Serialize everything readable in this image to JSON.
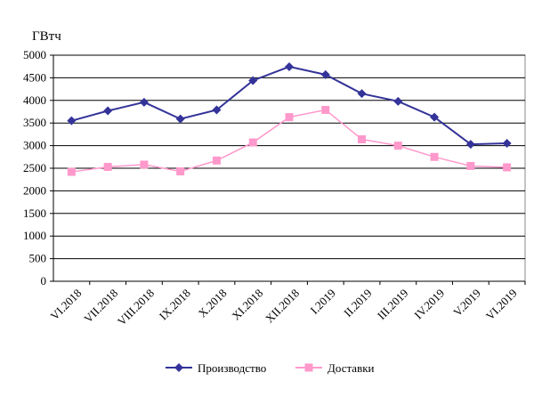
{
  "chart_data": {
    "type": "line",
    "title": "",
    "ylabel": "ГВтч",
    "xlabel": "",
    "ylim": [
      0,
      5000
    ],
    "yticks": [
      0,
      500,
      1000,
      1500,
      2000,
      2500,
      3000,
      3500,
      4000,
      4500,
      5000
    ],
    "grid": true,
    "legend_position": "bottom",
    "categories": [
      "VI.2018",
      "VII.2018",
      "VIII.2018",
      "IX.2018",
      "X.2018",
      "XI.2018",
      "XII.2018",
      "I.2019",
      "II.2019",
      "III.2019",
      "IV.2019",
      "V.2019",
      "VI.2019"
    ],
    "series": [
      {
        "name": "Производство",
        "color": "#333399",
        "marker": "diamond",
        "values": [
          3550,
          3770,
          3960,
          3590,
          3790,
          4440,
          4745,
          4570,
          4150,
          3980,
          3630,
          3030,
          3050
        ]
      },
      {
        "name": "Доставки",
        "color": "#ff99cc",
        "marker": "square",
        "values": [
          2420,
          2530,
          2580,
          2430,
          2670,
          3070,
          3630,
          3790,
          3140,
          3000,
          2750,
          2550,
          2520
        ]
      }
    ]
  }
}
